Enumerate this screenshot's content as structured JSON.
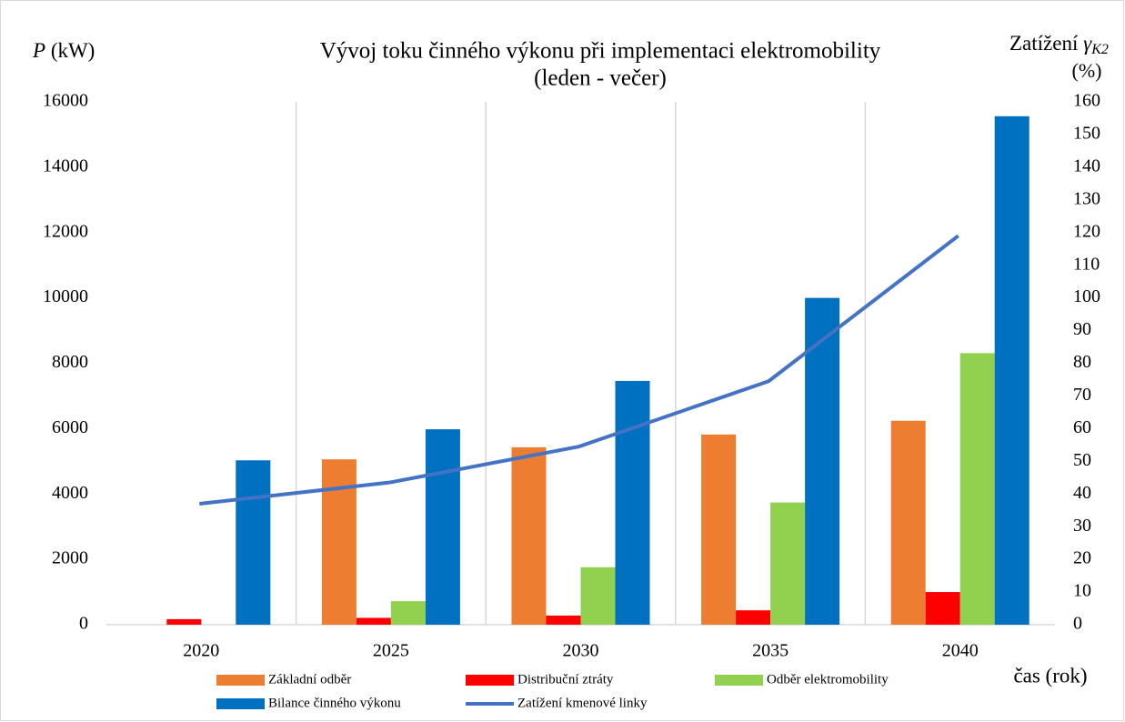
{
  "chart_data": {
    "type": "bar",
    "title": "Vývoj toku činného výkonu při implementaci elektromobility",
    "subtitle": "(leden - večer)",
    "y_label": {
      "symbol": "P",
      "unit": "(kW)"
    },
    "y2_label": {
      "text": "Zatížení",
      "symbol": "γ",
      "subscript": "K2",
      "unit": "(%)"
    },
    "x_label": "čas (rok)",
    "categories": [
      "2020",
      "2025",
      "2030",
      "2035",
      "2040"
    ],
    "series": [
      {
        "name": "Základní odběr",
        "color": "#ed7d31",
        "values": [
          0,
          5060,
          5430,
          5820,
          6240
        ]
      },
      {
        "name": "Distribuční ztráty",
        "color": "#ff0000",
        "values": [
          170,
          210,
          280,
          440,
          1000
        ]
      },
      {
        "name": "Odběr elektromobility",
        "color": "#92d050",
        "values": [
          0,
          720,
          1760,
          3740,
          8310
        ]
      },
      {
        "name": "Bilance činného výkonu",
        "color": "#0070c0",
        "values": [
          5030,
          5980,
          7460,
          10000,
          15560
        ]
      },
      {
        "name": "Zatížení kmenové linky",
        "color": "#4472c4",
        "type": "line",
        "axis": "y2",
        "values": [
          37,
          43.5,
          54.5,
          74.5,
          119
        ]
      }
    ],
    "ylim": [
      0,
      16000
    ],
    "yticks": [
      0,
      2000,
      4000,
      6000,
      8000,
      10000,
      12000,
      14000,
      16000
    ],
    "y2lim": [
      0,
      160
    ],
    "y2ticks": [
      0,
      10,
      20,
      30,
      40,
      50,
      60,
      70,
      80,
      90,
      100,
      110,
      120,
      130,
      140,
      150,
      160
    ],
    "grid": true
  }
}
